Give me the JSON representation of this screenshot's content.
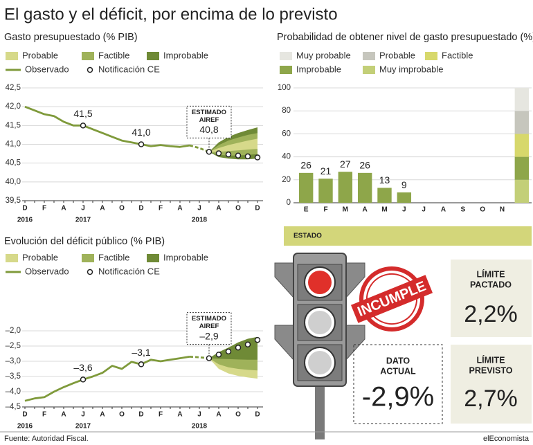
{
  "title": "El gasto y el déficit, por encima de lo previsto",
  "chart_data": [
    {
      "type": "line",
      "title": "Gasto presupuestado (% PIB)",
      "categories": [
        "D",
        null,
        "F",
        null,
        "A",
        null,
        "J",
        null,
        "A",
        null,
        "O",
        null,
        "D",
        null,
        "F",
        null,
        "A",
        null,
        "J",
        null,
        "A",
        null,
        "O",
        null,
        "D"
      ],
      "years": [
        "2016",
        "2017",
        "2018"
      ],
      "ylim": [
        39.5,
        42.5
      ],
      "yticks": [
        {
          "value": 39.5,
          "label": "39,5"
        },
        {
          "value": 40,
          "label": "40,0"
        },
        {
          "value": 40.5,
          "label": "40,5"
        },
        {
          "value": 41,
          "label": "41,0"
        },
        {
          "value": 41.5,
          "label": "41,5"
        },
        {
          "value": 42,
          "label": "42,0"
        },
        {
          "value": 42.5,
          "label": "42,5"
        }
      ],
      "grid": true,
      "bands": [
        {
          "name": "Improbable",
          "color": "#6f8a36",
          "upper": [
            null,
            null,
            null,
            null,
            null,
            null,
            null,
            null,
            null,
            null,
            null,
            null,
            null,
            null,
            null,
            null,
            null,
            null,
            null,
            40.8,
            41.05,
            41.2,
            41.3,
            41.38,
            41.45
          ],
          "lower": [
            null,
            null,
            null,
            null,
            null,
            null,
            null,
            null,
            null,
            null,
            null,
            null,
            null,
            null,
            null,
            null,
            null,
            null,
            null,
            40.8,
            40.66,
            40.62,
            40.6,
            40.6,
            40.62
          ]
        },
        {
          "name": "Factible",
          "color": "#9fb25a",
          "upper": [
            null,
            null,
            null,
            null,
            null,
            null,
            null,
            null,
            null,
            null,
            null,
            null,
            null,
            null,
            null,
            null,
            null,
            null,
            null,
            40.8,
            40.98,
            41.1,
            41.18,
            41.25,
            41.3
          ],
          "lower": [
            null,
            null,
            null,
            null,
            null,
            null,
            null,
            null,
            null,
            null,
            null,
            null,
            null,
            null,
            null,
            null,
            null,
            null,
            null,
            40.8,
            40.72,
            40.7,
            40.7,
            40.72,
            40.74
          ]
        },
        {
          "name": "Probable",
          "color": "#d6d98a",
          "upper": [
            null,
            null,
            null,
            null,
            null,
            null,
            null,
            null,
            null,
            null,
            null,
            null,
            null,
            null,
            null,
            null,
            null,
            null,
            null,
            40.8,
            40.9,
            40.98,
            41.04,
            41.1,
            41.15
          ],
          "lower": [
            null,
            null,
            null,
            null,
            null,
            null,
            null,
            null,
            null,
            null,
            null,
            null,
            null,
            null,
            null,
            null,
            null,
            null,
            null,
            40.8,
            40.8,
            40.82,
            40.84,
            40.86,
            40.88
          ]
        }
      ],
      "legend_order": [
        2,
        1,
        0
      ],
      "series": [
        {
          "name": "Observado",
          "color": "#7f9a3b",
          "values": [
            42.0,
            41.9,
            41.8,
            41.75,
            41.6,
            41.5,
            41.5,
            41.4,
            41.3,
            41.2,
            41.1,
            41.05,
            41.0,
            40.95,
            40.98,
            40.95,
            40.93,
            40.97,
            null,
            null,
            null,
            null,
            null,
            null,
            null
          ]
        }
      ],
      "projection": {
        "color": "#7f9a3b",
        "values": [
          null,
          null,
          null,
          null,
          null,
          null,
          null,
          null,
          null,
          null,
          null,
          null,
          null,
          null,
          null,
          null,
          null,
          40.97,
          40.9,
          40.8,
          null,
          null,
          null,
          null,
          null
        ]
      },
      "points": {
        "name": "Notificación CE",
        "values": [
          null,
          null,
          null,
          null,
          null,
          null,
          41.5,
          null,
          null,
          null,
          null,
          null,
          41.0,
          null,
          null,
          null,
          null,
          null,
          null,
          40.8,
          40.76,
          40.73,
          40.7,
          40.68,
          40.65
        ],
        "value_labels": [
          null,
          null,
          null,
          null,
          null,
          null,
          "41,5",
          null,
          null,
          null,
          null,
          null,
          "41,0",
          null,
          null,
          null,
          null,
          null,
          null,
          "40,8",
          null,
          null,
          null,
          null,
          null
        ]
      },
      "annotation": [
        "ESTIMADO",
        "AIREF"
      ]
    },
    {
      "type": "line",
      "title": "Evolución del déficit público (% PIB)",
      "categories": [
        "D",
        null,
        "F",
        null,
        "A",
        null,
        "J",
        null,
        "A",
        null,
        "O",
        null,
        "D",
        null,
        "F",
        null,
        "A",
        null,
        "J",
        null,
        "A",
        null,
        "O",
        null,
        "D"
      ],
      "years": [
        "2016",
        "2017",
        "2018"
      ],
      "ylim": [
        -4.5,
        -2.0
      ],
      "yticks": [
        {
          "value": -4.5,
          "label": "–4,5"
        },
        {
          "value": -4,
          "label": "–4,0"
        },
        {
          "value": -3.5,
          "label": "–3,5"
        },
        {
          "value": -3,
          "label": "–3,0"
        },
        {
          "value": -2.5,
          "label": "–2,5"
        },
        {
          "value": -2,
          "label": "–2,0"
        }
      ],
      "grid": true,
      "bands": [
        {
          "name": "Probable",
          "color": "#d6d98a",
          "upper": [
            null,
            null,
            null,
            null,
            null,
            null,
            null,
            null,
            null,
            null,
            null,
            null,
            null,
            null,
            null,
            null,
            null,
            null,
            null,
            -2.9,
            -2.76,
            -2.62,
            -2.47,
            -2.37,
            -2.3
          ],
          "lower": [
            null,
            null,
            null,
            null,
            null,
            null,
            null,
            null,
            null,
            null,
            null,
            null,
            null,
            null,
            null,
            null,
            null,
            null,
            null,
            -2.9,
            -3.25,
            -3.4,
            -3.48,
            -3.53,
            -3.57
          ]
        },
        {
          "name": "Factible",
          "color": "#9fb25a",
          "upper": [
            null,
            null,
            null,
            null,
            null,
            null,
            null,
            null,
            null,
            null,
            null,
            null,
            null,
            null,
            null,
            null,
            null,
            null,
            null,
            -2.9,
            -2.73,
            -2.58,
            -2.42,
            -2.3,
            -2.25
          ],
          "lower": [
            null,
            null,
            null,
            null,
            null,
            null,
            null,
            null,
            null,
            null,
            null,
            null,
            null,
            null,
            null,
            null,
            null,
            null,
            null,
            -2.9,
            -3.1,
            -3.2,
            -3.25,
            -3.28,
            -3.3
          ]
        },
        {
          "name": "Improbable",
          "color": "#6f8a36",
          "upper": [
            null,
            null,
            null,
            null,
            null,
            null,
            null,
            null,
            null,
            null,
            null,
            null,
            null,
            null,
            null,
            null,
            null,
            null,
            null,
            -2.9,
            -2.7,
            -2.55,
            -2.38,
            -2.26,
            -2.2
          ],
          "lower": [
            null,
            null,
            null,
            null,
            null,
            null,
            null,
            null,
            null,
            null,
            null,
            null,
            null,
            null,
            null,
            null,
            null,
            null,
            null,
            -2.9,
            -2.92,
            -2.93,
            -2.94,
            -2.95,
            -2.95
          ]
        }
      ],
      "legend_order": [
        0,
        1,
        2
      ],
      "series": [
        {
          "name": "Observado",
          "color": "#7f9a3b",
          "values": [
            -4.3,
            -4.22,
            -4.18,
            -4.0,
            -3.85,
            -3.72,
            -3.6,
            -3.5,
            -3.38,
            -3.15,
            -3.25,
            -3.02,
            -3.1,
            -2.95,
            -3.0,
            -2.95,
            -2.9,
            -2.85,
            null,
            null,
            null,
            null,
            null,
            null,
            null
          ]
        }
      ],
      "projection": {
        "color": "#7f9a3b",
        "values": [
          null,
          null,
          null,
          null,
          null,
          null,
          null,
          null,
          null,
          null,
          null,
          null,
          null,
          null,
          null,
          null,
          null,
          -2.85,
          -2.87,
          -2.9,
          null,
          null,
          null,
          null,
          null
        ]
      },
      "points": {
        "name": "Notificación CE",
        "values": [
          null,
          null,
          null,
          null,
          null,
          null,
          -3.6,
          null,
          null,
          null,
          null,
          null,
          -3.1,
          null,
          null,
          null,
          null,
          null,
          null,
          -2.9,
          -2.78,
          -2.68,
          -2.55,
          -2.45,
          -2.3
        ],
        "value_labels": [
          null,
          null,
          null,
          null,
          null,
          null,
          "–3,6",
          null,
          null,
          null,
          null,
          null,
          "–3,1",
          null,
          null,
          null,
          null,
          null,
          null,
          "–2,9",
          null,
          null,
          null,
          null,
          null
        ]
      },
      "annotation": [
        "ESTIMADO",
        "AIREF"
      ]
    },
    {
      "type": "bar",
      "title": "Probabilidad de obtener nivel de gasto presupuestado (%)",
      "categories": [
        "E",
        "F",
        "M",
        "A",
        "M",
        "J",
        "J",
        "A",
        "S",
        "O",
        "N",
        null
      ],
      "values": [
        26,
        21,
        27,
        26,
        13,
        9,
        null,
        null,
        null,
        null,
        null,
        null
      ],
      "color": "#8ea64a",
      "ylim": [
        0,
        100
      ],
      "yticks": [
        0,
        20,
        40,
        60,
        80,
        100
      ],
      "grid": true,
      "series": [
        {
          "name": "Muy probable",
          "color": "#e6e6e0",
          "values": [
            null,
            null,
            null,
            null,
            null,
            null,
            null,
            null,
            null,
            null,
            null,
            20
          ]
        },
        {
          "name": "Probable",
          "color": "#c6c6bd",
          "values": [
            null,
            null,
            null,
            null,
            null,
            null,
            null,
            null,
            null,
            null,
            null,
            20
          ]
        },
        {
          "name": "Factible",
          "color": "#d7d86c",
          "values": [
            null,
            null,
            null,
            null,
            null,
            null,
            null,
            null,
            null,
            null,
            null,
            20
          ]
        },
        {
          "name": "Improbable",
          "color": "#8ea64a",
          "values": [
            null,
            null,
            null,
            null,
            null,
            null,
            null,
            null,
            null,
            null,
            null,
            20
          ]
        },
        {
          "name": "Muy improbable",
          "color": "#c3cf78",
          "values": [
            null,
            null,
            null,
            null,
            null,
            null,
            null,
            null,
            null,
            null,
            null,
            20
          ]
        }
      ]
    }
  ],
  "status": {
    "label": "ESTADO",
    "stamp": "INCUMPLE",
    "current": {
      "title_lines": [
        "DATO",
        "ACTUAL"
      ],
      "value": "-2,9%"
    },
    "limits": [
      {
        "title_lines": [
          "LÍMITE",
          "PACTADO"
        ],
        "value": "2,2%"
      },
      {
        "title_lines": [
          "LÍMITE",
          "PREVISTO"
        ],
        "value": "2,7%"
      }
    ]
  },
  "source": "Fuente: Autoridad Fiscal.",
  "brand": "elEconomista"
}
